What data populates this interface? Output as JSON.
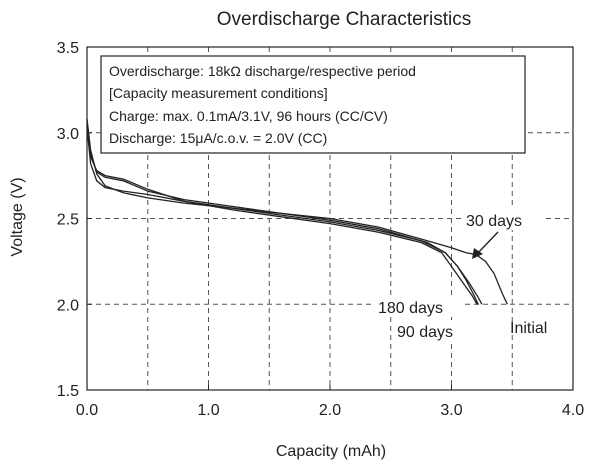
{
  "chart_data": {
    "type": "line",
    "title": "Overdischarge Characteristics",
    "xlabel": "Capacity (mAh)",
    "ylabel": "Voltage (V)",
    "xlim": [
      0,
      4
    ],
    "ylim": [
      1.5,
      3.5
    ],
    "grid": true,
    "xticks": [
      "0.0",
      "1.0",
      "2.0",
      "3.0",
      "4.0"
    ],
    "yticks": [
      "1.5",
      "2.0",
      "2.5",
      "3.0",
      "3.5"
    ],
    "xtick_values": [
      0,
      1,
      2,
      3,
      4
    ],
    "ytick_values": [
      1.5,
      2.0,
      2.5,
      3.0,
      3.5
    ],
    "conditions_box": [
      "Overdischarge: 18kΩ discharge/respective period",
      "[Capacity measurement conditions]",
      "Charge: max. 0.1mA/3.1V, 96 hours (CC/CV)",
      "Discharge: 15μA/c.o.v. = 2.0V (CC)"
    ],
    "series": [
      {
        "label": "Initial",
        "x": [
          0.0,
          0.03,
          0.08,
          0.15,
          0.3,
          0.5,
          0.8,
          1.2,
          1.6,
          2.0,
          2.4,
          2.8,
          3.0,
          3.12,
          3.2,
          3.28,
          3.35,
          3.42,
          3.46
        ],
        "y": [
          3.08,
          2.9,
          2.76,
          2.69,
          2.65,
          2.62,
          2.59,
          2.56,
          2.53,
          2.5,
          2.45,
          2.37,
          2.33,
          2.3,
          2.29,
          2.25,
          2.18,
          2.06,
          2.0
        ]
      },
      {
        "label": "30 days",
        "x": [
          0.0,
          0.03,
          0.08,
          0.15,
          0.3,
          0.5,
          0.8,
          1.2,
          1.6,
          2.0,
          2.4,
          2.8,
          2.95,
          3.05,
          3.12,
          3.18,
          3.22
        ],
        "y": [
          3.06,
          2.88,
          2.77,
          2.74,
          2.72,
          2.66,
          2.61,
          2.57,
          2.53,
          2.49,
          2.44,
          2.36,
          2.3,
          2.22,
          2.14,
          2.06,
          2.0
        ]
      },
      {
        "label": "90 days",
        "x": [
          0.0,
          0.03,
          0.08,
          0.15,
          0.3,
          0.5,
          0.8,
          1.2,
          1.6,
          2.0,
          2.4,
          2.75,
          2.95,
          3.05,
          3.15,
          3.22,
          3.25
        ],
        "y": [
          3.04,
          2.86,
          2.78,
          2.75,
          2.73,
          2.67,
          2.6,
          2.56,
          2.52,
          2.48,
          2.43,
          2.37,
          2.3,
          2.22,
          2.12,
          2.04,
          2.0
        ]
      },
      {
        "label": "180 days",
        "x": [
          0.0,
          0.03,
          0.08,
          0.15,
          0.3,
          0.5,
          0.8,
          1.2,
          1.6,
          2.0,
          2.4,
          2.75,
          2.92,
          3.02,
          3.1,
          3.17,
          3.21
        ],
        "y": [
          3.03,
          2.82,
          2.72,
          2.68,
          2.66,
          2.64,
          2.6,
          2.55,
          2.51,
          2.47,
          2.42,
          2.36,
          2.3,
          2.2,
          2.12,
          2.05,
          2.0
        ]
      }
    ],
    "annotations": [
      {
        "text": "30 days",
        "series": "30 days"
      },
      {
        "text": "180 days",
        "series": "180 days"
      },
      {
        "text": "90 days",
        "series": "90 days"
      },
      {
        "text": "Initial",
        "series": "Initial"
      }
    ]
  }
}
